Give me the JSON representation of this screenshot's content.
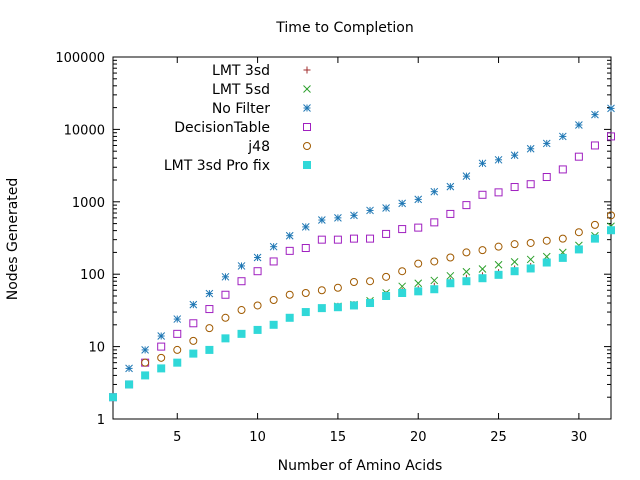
{
  "chart_data": {
    "type": "scatter",
    "title": "Time to Completion",
    "xlabel": "Number of Amino Acids",
    "ylabel": "Nodes Generated",
    "xlim": [
      1,
      32
    ],
    "ylim": [
      1,
      100000
    ],
    "y_scale": "log",
    "x_ticks": [
      5,
      10,
      15,
      20,
      25,
      30
    ],
    "y_ticks": [
      1,
      10,
      100,
      1000,
      10000,
      100000
    ],
    "y_tick_labels": [
      "1",
      "10",
      "100",
      "1000",
      "10000",
      "100000"
    ],
    "grid": false,
    "legend_position": "top-left",
    "series": [
      {
        "name": "LMT 3sd",
        "marker": "plus",
        "color": "#a02c2c",
        "x": [
          1,
          2,
          3,
          4,
          5,
          6,
          7,
          8,
          9,
          10,
          11,
          12,
          13,
          14,
          15,
          16,
          17,
          18,
          19,
          20,
          21,
          22,
          23,
          24,
          25,
          26,
          27,
          28,
          29,
          30,
          31,
          32
        ],
        "values": [
          2,
          3,
          4,
          5,
          6,
          8,
          9,
          13,
          15,
          17,
          20,
          25,
          30,
          34,
          36,
          38,
          41,
          52,
          58,
          62,
          68,
          80,
          88,
          95,
          105,
          118,
          128,
          148,
          172,
          225,
          320,
          420
        ]
      },
      {
        "name": "LMT 5sd",
        "marker": "cross",
        "color": "#2ca02c",
        "x": [
          1,
          2,
          3,
          4,
          5,
          6,
          7,
          8,
          9,
          10,
          11,
          12,
          13,
          14,
          15,
          16,
          17,
          18,
          19,
          20,
          21,
          22,
          23,
          24,
          25,
          26,
          27,
          28,
          29,
          30,
          31,
          32
        ],
        "values": [
          2,
          3,
          4,
          5,
          6,
          8,
          9,
          13,
          15,
          17,
          20,
          25,
          30,
          34,
          36,
          38,
          43,
          55,
          68,
          75,
          82,
          95,
          108,
          118,
          135,
          148,
          160,
          175,
          200,
          250,
          340,
          460
        ]
      },
      {
        "name": "No Filter",
        "marker": "star",
        "color": "#1f77b4",
        "x": [
          1,
          2,
          3,
          4,
          5,
          6,
          7,
          8,
          9,
          10,
          11,
          12,
          13,
          14,
          15,
          16,
          17,
          18,
          19,
          20,
          21,
          22,
          23,
          24,
          25,
          26,
          27,
          28,
          29,
          30,
          31,
          32
        ],
        "values": [
          2,
          5,
          9,
          14,
          24,
          38,
          54,
          92,
          130,
          170,
          240,
          340,
          450,
          560,
          600,
          650,
          760,
          820,
          950,
          1080,
          1380,
          1620,
          2260,
          3400,
          3800,
          4400,
          5400,
          6400,
          8000,
          11500,
          16000,
          19500
        ]
      },
      {
        "name": "DecisionTable",
        "marker": "square-open",
        "color": "#a020c0",
        "x": [
          1,
          2,
          3,
          4,
          5,
          6,
          7,
          8,
          9,
          10,
          11,
          12,
          13,
          14,
          15,
          16,
          17,
          18,
          19,
          20,
          21,
          22,
          23,
          24,
          25,
          26,
          27,
          28,
          29,
          30,
          31,
          32
        ],
        "values": [
          2,
          3,
          6,
          10,
          15,
          21,
          33,
          52,
          80,
          110,
          150,
          210,
          230,
          300,
          300,
          310,
          310,
          360,
          420,
          440,
          520,
          680,
          900,
          1250,
          1350,
          1600,
          1750,
          2200,
          2800,
          4200,
          6000,
          8000
        ]
      },
      {
        "name": "j48",
        "marker": "circle-open",
        "color": "#a05a00",
        "x": [
          1,
          2,
          3,
          4,
          5,
          6,
          7,
          8,
          9,
          10,
          11,
          12,
          13,
          14,
          15,
          16,
          17,
          18,
          19,
          20,
          21,
          22,
          23,
          24,
          25,
          26,
          27,
          28,
          29,
          30,
          31,
          32
        ],
        "values": [
          2,
          3,
          6,
          7,
          9,
          12,
          18,
          25,
          32,
          37,
          44,
          52,
          55,
          60,
          65,
          78,
          80,
          92,
          110,
          140,
          150,
          170,
          200,
          215,
          240,
          260,
          270,
          290,
          310,
          380,
          480,
          650
        ]
      },
      {
        "name": "LMT 3sd Pro fix",
        "marker": "square-filled",
        "color": "#30d8d8",
        "x": [
          1,
          2,
          3,
          4,
          5,
          6,
          7,
          8,
          9,
          10,
          11,
          12,
          13,
          14,
          15,
          16,
          17,
          18,
          19,
          20,
          21,
          22,
          23,
          24,
          25,
          26,
          27,
          28,
          29,
          30,
          31,
          32
        ],
        "values": [
          2,
          3,
          4,
          5,
          6,
          8,
          9,
          13,
          15,
          17,
          20,
          25,
          30,
          34,
          35,
          37,
          40,
          50,
          55,
          58,
          62,
          75,
          80,
          88,
          98,
          110,
          120,
          145,
          168,
          220,
          310,
          405
        ]
      }
    ]
  }
}
